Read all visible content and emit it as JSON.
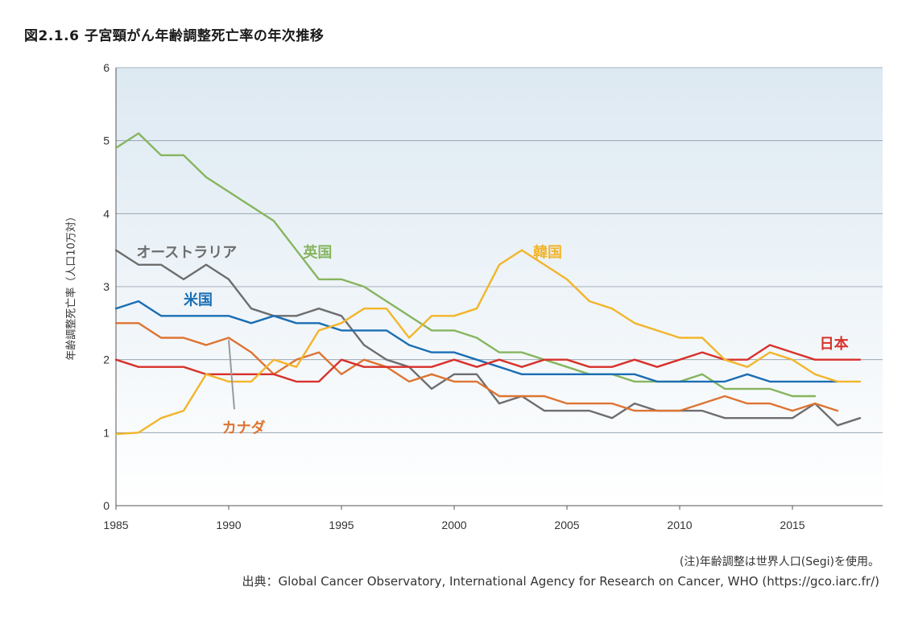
{
  "figure_title": "図2.1.6 子宮頸がん年齢調整死亡率の年次推移",
  "note": "(注)年齢調整は世界人口(Segi)を使用。",
  "source": "出典：Global Cancer Observatory, International Agency for Research on Cancer, WHO (https://gco.iarc.fr/)",
  "chart_data": {
    "type": "line",
    "title": "図2.1.6 子宮頸がん年齢調整死亡率の年次推移",
    "ylabel": "年齢調整死亡率（人口10万対）",
    "xlabel": "",
    "xlim": [
      1985,
      2019
    ],
    "ylim": [
      0,
      6
    ],
    "xticks": [
      1985,
      1990,
      1995,
      2000,
      2005,
      2010,
      2015
    ],
    "yticks": [
      0,
      1,
      2,
      3,
      4,
      5,
      6
    ],
    "grid": "horizontal",
    "legend": "direct labels on lines",
    "background_gradient": [
      "#dde9f2",
      "#ffffff"
    ],
    "series": [
      {
        "name": "英国",
        "color": "#86b55e",
        "x": [
          1985,
          1986,
          1987,
          1988,
          1989,
          1990,
          1991,
          1992,
          1993,
          1994,
          1995,
          1996,
          1997,
          1998,
          1999,
          2000,
          2001,
          2002,
          2003,
          2004,
          2005,
          2006,
          2007,
          2008,
          2009,
          2010,
          2011,
          2012,
          2013,
          2014,
          2015,
          2016
        ],
        "y": [
          4.9,
          5.1,
          4.8,
          4.8,
          4.5,
          4.3,
          4.1,
          3.9,
          3.5,
          3.1,
          3.1,
          3.0,
          2.8,
          2.6,
          2.4,
          2.4,
          2.3,
          2.1,
          2.1,
          2.0,
          1.9,
          1.8,
          1.8,
          1.7,
          1.7,
          1.7,
          1.8,
          1.6,
          1.6,
          1.6,
          1.5,
          1.5
        ]
      },
      {
        "name": "オーストラリア",
        "color": "#6e6e6e",
        "x": [
          1985,
          1986,
          1987,
          1988,
          1989,
          1990,
          1991,
          1992,
          1993,
          1994,
          1995,
          1996,
          1997,
          1998,
          1999,
          2000,
          2001,
          2002,
          2003,
          2004,
          2005,
          2006,
          2007,
          2008,
          2009,
          2010,
          2011,
          2012,
          2013,
          2014,
          2015,
          2016,
          2017,
          2018
        ],
        "y": [
          3.5,
          3.3,
          3.3,
          3.1,
          3.3,
          3.1,
          2.7,
          2.6,
          2.6,
          2.7,
          2.6,
          2.2,
          2.0,
          1.9,
          1.6,
          1.8,
          1.8,
          1.4,
          1.5,
          1.3,
          1.3,
          1.3,
          1.2,
          1.4,
          1.3,
          1.3,
          1.3,
          1.2,
          1.2,
          1.2,
          1.2,
          1.4,
          1.1,
          1.2
        ]
      },
      {
        "name": "米国",
        "color": "#1a6eb4",
        "x": [
          1985,
          1986,
          1987,
          1988,
          1989,
          1990,
          1991,
          1992,
          1993,
          1994,
          1995,
          1996,
          1997,
          1998,
          1999,
          2000,
          2001,
          2002,
          2003,
          2004,
          2005,
          2006,
          2007,
          2008,
          2009,
          2010,
          2011,
          2012,
          2013,
          2014,
          2015,
          2016,
          2017
        ],
        "y": [
          2.7,
          2.8,
          2.6,
          2.6,
          2.6,
          2.6,
          2.5,
          2.6,
          2.5,
          2.5,
          2.4,
          2.4,
          2.4,
          2.2,
          2.1,
          2.1,
          2.0,
          1.9,
          1.8,
          1.8,
          1.8,
          1.8,
          1.8,
          1.8,
          1.7,
          1.7,
          1.7,
          1.7,
          1.8,
          1.7,
          1.7,
          1.7,
          1.7
        ]
      },
      {
        "name": "カナダ",
        "color": "#dd7432",
        "x": [
          1985,
          1986,
          1987,
          1988,
          1989,
          1990,
          1991,
          1992,
          1993,
          1994,
          1995,
          1996,
          1997,
          1998,
          1999,
          2000,
          2001,
          2002,
          2003,
          2004,
          2005,
          2006,
          2007,
          2008,
          2009,
          2010,
          2011,
          2012,
          2013,
          2014,
          2015,
          2016,
          2017
        ],
        "y": [
          2.5,
          2.5,
          2.3,
          2.3,
          2.2,
          2.3,
          2.1,
          1.8,
          2.0,
          2.1,
          1.8,
          2.0,
          1.9,
          1.7,
          1.8,
          1.7,
          1.7,
          1.5,
          1.5,
          1.5,
          1.4,
          1.4,
          1.4,
          1.3,
          1.3,
          1.3,
          1.4,
          1.5,
          1.4,
          1.4,
          1.3,
          1.4,
          1.3
        ]
      },
      {
        "name": "日本",
        "color": "#d8312b",
        "x": [
          1985,
          1986,
          1987,
          1988,
          1989,
          1990,
          1991,
          1992,
          1993,
          1994,
          1995,
          1996,
          1997,
          1998,
          1999,
          2000,
          2001,
          2002,
          2003,
          2004,
          2005,
          2006,
          2007,
          2008,
          2009,
          2010,
          2011,
          2012,
          2013,
          2014,
          2015,
          2016,
          2017,
          2018
        ],
        "y": [
          2.0,
          1.9,
          1.9,
          1.9,
          1.8,
          1.8,
          1.8,
          1.8,
          1.7,
          1.7,
          2.0,
          1.9,
          1.9,
          1.9,
          1.9,
          2.0,
          1.9,
          2.0,
          1.9,
          2.0,
          2.0,
          1.9,
          1.9,
          2.0,
          1.9,
          2.0,
          2.1,
          2.0,
          2.0,
          2.2,
          2.1,
          2.0,
          2.0,
          2.0
        ]
      },
      {
        "name": "韓国",
        "color": "#f2b52a",
        "x": [
          1985,
          1986,
          1987,
          1988,
          1989,
          1990,
          1991,
          1992,
          1993,
          1994,
          1995,
          1996,
          1997,
          1998,
          1999,
          2000,
          2001,
          2002,
          2003,
          2004,
          2005,
          2006,
          2007,
          2008,
          2009,
          2010,
          2011,
          2012,
          2013,
          2014,
          2015,
          2016,
          2017,
          2018
        ],
        "y": [
          0.98,
          1.0,
          1.2,
          1.3,
          1.8,
          1.7,
          1.7,
          2.0,
          1.9,
          2.4,
          2.5,
          2.7,
          2.7,
          2.3,
          2.6,
          2.6,
          2.7,
          3.3,
          3.5,
          3.3,
          3.1,
          2.8,
          2.7,
          2.5,
          2.4,
          2.3,
          2.3,
          2.0,
          1.9,
          2.1,
          2.0,
          1.8,
          1.7,
          1.7
        ]
      }
    ],
    "annotations": [
      {
        "text": "オーストラリア",
        "color": "#6e6e6e",
        "x": 1985.9,
        "y": 3.4
      },
      {
        "text": "英国",
        "color": "#86b55e",
        "x": 1993.3,
        "y": 3.4
      },
      {
        "text": "韓国",
        "color": "#f2b52a",
        "x": 2003.5,
        "y": 3.4
      },
      {
        "text": "米国",
        "color": "#1a6eb4",
        "x": 1988.0,
        "y": 2.75
      },
      {
        "text": "日本",
        "color": "#d8312b",
        "x": 2016.2,
        "y": 2.15
      },
      {
        "text": "カナダ",
        "color": "#dd7432",
        "x": 1989.7,
        "y": 1.0
      }
    ],
    "pointer": {
      "from": [
        1990.25,
        1.32
      ],
      "to": [
        1990.0,
        2.27
      ],
      "color": "#9a9a9a"
    }
  }
}
